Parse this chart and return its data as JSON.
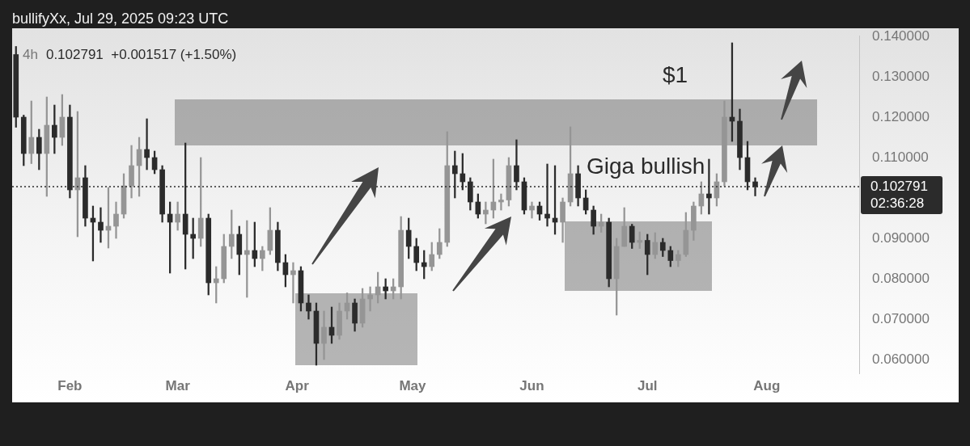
{
  "chart_data": {
    "type": "candlestick",
    "title": "4h",
    "subtitle": "0.102791  +0.001517 (+1.50%)",
    "annotations": [
      "bullifyXx, Jul 29, 2025 09:23 UTC",
      "$1",
      "Giga bullish"
    ],
    "colors": [
      "#2b2b2b",
      "#2b2b2b",
      "#959595",
      "#2b2b2b",
      "#959595",
      "#2b2b2b",
      "#959595",
      "#2b2b2b",
      "#959595",
      "#2b2b2b",
      "#2b2b2b",
      "#2b2b2b",
      "#959595",
      "#959595",
      "#959595",
      "#959595",
      "#959595",
      "#2b2b2b",
      "#2b2b2b",
      "#2b2b2b",
      "#2b2b2b",
      "#959595",
      "#2b2b2b",
      "#2b2b2b",
      "#959595",
      "#2b2b2b",
      "#959595",
      "#959595",
      "#959595",
      "#2b2b2b",
      "#959595",
      "#2b2b2b",
      "#959595",
      "#959595",
      "#2b2b2b",
      "#2b2b2b",
      "#959595",
      "#2b2b2b",
      "#2b2b2b",
      "#2b2b2b",
      "#959595",
      "#2b2b2b",
      "#959595",
      "#959595",
      "#2b2b2b",
      "#959595",
      "#959595",
      "#959595",
      "#2b2b2b",
      "#959595",
      "#959595",
      "#2b2b2b",
      "#2b2b2b",
      "#2b2b2b",
      "#959595",
      "#959595",
      "#959595",
      "#2b2b2b",
      "#2b2b2b",
      "#2b2b2b",
      "#2b2b2b",
      "#959595",
      "#959595",
      "#959595",
      "#959595",
      "#2b2b2b",
      "#2b2b2b",
      "#959595",
      "#2b2b2b",
      "#2b2b2b",
      "#2b2b2b",
      "#959595",
      "#959595",
      "#2b2b2b",
      "#2b2b2b",
      "#2b2b2b",
      "#959595",
      "#2b2b2b",
      "#959595",
      "#959595",
      "#2b2b2b",
      "#959595",
      "#2b2b2b",
      "#959595",
      "#2b2b2b",
      "#2b2b2b",
      "#959595",
      "#959595",
      "#959595",
      "#959595",
      "#2b2b2b",
      "#959595",
      "#959595",
      "#2b2b2b",
      "#2b2b2b",
      "#2b2b2b",
      "#2b2b2b"
    ],
    "x": [
      "2025-01-18",
      "2025-01-20",
      "2025-01-22",
      "2025-01-24",
      "2025-01-26",
      "2025-01-28",
      "2025-01-30",
      "2025-02-01",
      "2025-02-03",
      "2025-02-05",
      "2025-02-07",
      "2025-02-09",
      "2025-02-11",
      "2025-02-13",
      "2025-02-15",
      "2025-02-17",
      "2025-02-19",
      "2025-02-21",
      "2025-02-23",
      "2025-02-25",
      "2025-02-27",
      "2025-03-01",
      "2025-03-03",
      "2025-03-05",
      "2025-03-07",
      "2025-03-09",
      "2025-03-11",
      "2025-03-13",
      "2025-03-15",
      "2025-03-17",
      "2025-03-19",
      "2025-03-21",
      "2025-03-23",
      "2025-03-25",
      "2025-03-27",
      "2025-03-29",
      "2025-03-31",
      "2025-04-02",
      "2025-04-04",
      "2025-04-06",
      "2025-04-08",
      "2025-04-10",
      "2025-04-12",
      "2025-04-14",
      "2025-04-16",
      "2025-04-18",
      "2025-04-20",
      "2025-04-22",
      "2025-04-24",
      "2025-04-26",
      "2025-04-28",
      "2025-04-30",
      "2025-05-02",
      "2025-05-04",
      "2025-05-06",
      "2025-05-08",
      "2025-05-10",
      "2025-05-12",
      "2025-05-14",
      "2025-05-16",
      "2025-05-18",
      "2025-05-20",
      "2025-05-22",
      "2025-05-24",
      "2025-05-26",
      "2025-05-28",
      "2025-05-30",
      "2025-06-01",
      "2025-06-03",
      "2025-06-05",
      "2025-06-07",
      "2025-06-09",
      "2025-06-11",
      "2025-06-13",
      "2025-06-15",
      "2025-06-17",
      "2025-06-19",
      "2025-06-21",
      "2025-06-23",
      "2025-06-25",
      "2025-06-27",
      "2025-06-29",
      "2025-07-01",
      "2025-07-03",
      "2025-07-05",
      "2025-07-07",
      "2025-07-09",
      "2025-07-11",
      "2025-07-13",
      "2025-07-15",
      "2025-07-17",
      "2025-07-19",
      "2025-07-21",
      "2025-07-23",
      "2025-07-25",
      "2025-07-27",
      "2025-07-29"
    ],
    "ohlc": [
      [
        0.1355,
        0.1375,
        0.1175,
        0.12
      ],
      [
        0.12,
        0.1205,
        0.108,
        0.111
      ],
      [
        0.111,
        0.124,
        0.1085,
        0.115
      ],
      [
        0.115,
        0.117,
        0.107,
        0.111
      ],
      [
        0.111,
        0.125,
        0.1004,
        0.118
      ],
      [
        0.118,
        0.123,
        0.111,
        0.115
      ],
      [
        0.115,
        0.1256,
        0.113,
        0.12
      ],
      [
        0.12,
        0.123,
        0.1,
        0.102
      ],
      [
        0.102,
        0.1214,
        0.0904,
        0.105
      ],
      [
        0.105,
        0.108,
        0.093,
        0.095
      ],
      [
        0.095,
        0.098,
        0.0844,
        0.094
      ],
      [
        0.094,
        0.0976,
        0.089,
        0.092
      ],
      [
        0.092,
        0.1026,
        0.0876,
        0.093
      ],
      [
        0.093,
        0.099,
        0.09,
        0.096
      ],
      [
        0.096,
        0.106,
        0.095,
        0.103
      ],
      [
        0.103,
        0.113,
        0.1,
        0.108
      ],
      [
        0.108,
        0.115,
        0.1004,
        0.112
      ],
      [
        0.112,
        0.1196,
        0.107,
        0.11
      ],
      [
        0.11,
        0.1116,
        0.106,
        0.107
      ],
      [
        0.107,
        0.108,
        0.094,
        0.096
      ],
      [
        0.096,
        0.099,
        0.0814,
        0.094
      ],
      [
        0.094,
        0.099,
        0.092,
        0.096
      ],
      [
        0.096,
        0.1136,
        0.0824,
        0.091
      ],
      [
        0.091,
        0.095,
        0.085,
        0.09
      ],
      [
        0.09,
        0.11,
        0.088,
        0.095
      ],
      [
        0.095,
        0.096,
        0.076,
        0.079
      ],
      [
        0.079,
        0.083,
        0.074,
        0.08
      ],
      [
        0.08,
        0.091,
        0.079,
        0.088
      ],
      [
        0.088,
        0.097,
        0.085,
        0.091
      ],
      [
        0.091,
        0.093,
        0.081,
        0.086
      ],
      [
        0.086,
        0.0944,
        0.0754,
        0.087
      ],
      [
        0.087,
        0.094,
        0.083,
        0.085
      ],
      [
        0.085,
        0.088,
        0.082,
        0.087
      ],
      [
        0.087,
        0.0976,
        0.086,
        0.092
      ],
      [
        0.092,
        0.094,
        0.082,
        0.084
      ],
      [
        0.084,
        0.086,
        0.078,
        0.081
      ],
      [
        0.081,
        0.084,
        0.074,
        0.082
      ],
      [
        0.082,
        0.083,
        0.072,
        0.074
      ],
      [
        0.074,
        0.076,
        0.07,
        0.072
      ],
      [
        0.072,
        0.074,
        0.0586,
        0.064
      ],
      [
        0.064,
        0.072,
        0.06,
        0.068
      ],
      [
        0.068,
        0.073,
        0.064,
        0.066
      ],
      [
        0.066,
        0.074,
        0.065,
        0.072
      ],
      [
        0.072,
        0.0765,
        0.07,
        0.074
      ],
      [
        0.074,
        0.075,
        0.067,
        0.069
      ],
      [
        0.069,
        0.0776,
        0.068,
        0.075
      ],
      [
        0.075,
        0.078,
        0.072,
        0.076
      ],
      [
        0.076,
        0.0816,
        0.074,
        0.078
      ],
      [
        0.078,
        0.08,
        0.075,
        0.077
      ],
      [
        0.077,
        0.08,
        0.075,
        0.078
      ],
      [
        0.078,
        0.0954,
        0.075,
        0.092
      ],
      [
        0.092,
        0.095,
        0.085,
        0.088
      ],
      [
        0.088,
        0.09,
        0.082,
        0.084
      ],
      [
        0.084,
        0.087,
        0.08,
        0.083
      ],
      [
        0.083,
        0.089,
        0.082,
        0.086
      ],
      [
        0.086,
        0.0924,
        0.085,
        0.089
      ],
      [
        0.089,
        0.1164,
        0.088,
        0.108
      ],
      [
        0.108,
        0.1116,
        0.1,
        0.106
      ],
      [
        0.106,
        0.111,
        0.102,
        0.104
      ],
      [
        0.104,
        0.105,
        0.097,
        0.099
      ],
      [
        0.099,
        0.101,
        0.095,
        0.096
      ],
      [
        0.096,
        0.099,
        0.0936,
        0.097
      ],
      [
        0.097,
        0.1096,
        0.095,
        0.099
      ],
      [
        0.099,
        0.101,
        0.097,
        0.0995
      ],
      [
        0.0995,
        0.11,
        0.098,
        0.108
      ],
      [
        0.108,
        0.1144,
        0.102,
        0.104
      ],
      [
        0.104,
        0.105,
        0.096,
        0.097
      ],
      [
        0.097,
        0.099,
        0.095,
        0.098
      ],
      [
        0.098,
        0.099,
        0.0945,
        0.096
      ],
      [
        0.096,
        0.1084,
        0.093,
        0.095
      ],
      [
        0.095,
        0.108,
        0.091,
        0.094
      ],
      [
        0.094,
        0.1,
        0.089,
        0.099
      ],
      [
        0.099,
        0.1176,
        0.098,
        0.106
      ],
      [
        0.106,
        0.108,
        0.098,
        0.1
      ],
      [
        0.1,
        0.102,
        0.096,
        0.097
      ],
      [
        0.097,
        0.098,
        0.091,
        0.093
      ],
      [
        0.093,
        0.096,
        0.0915,
        0.094
      ],
      [
        0.094,
        0.095,
        0.078,
        0.08
      ],
      [
        0.08,
        0.09,
        0.071,
        0.088
      ],
      [
        0.088,
        0.0976,
        0.088,
        0.093
      ],
      [
        0.093,
        0.0935,
        0.0875,
        0.089
      ],
      [
        0.089,
        0.0916,
        0.0875,
        0.0895
      ],
      [
        0.0895,
        0.091,
        0.081,
        0.086
      ],
      [
        0.086,
        0.0914,
        0.085,
        0.089
      ],
      [
        0.089,
        0.09,
        0.0855,
        0.087
      ],
      [
        0.087,
        0.088,
        0.083,
        0.0845
      ],
      [
        0.0845,
        0.087,
        0.083,
        0.086
      ],
      [
        0.086,
        0.0964,
        0.0855,
        0.092
      ],
      [
        0.092,
        0.099,
        0.0895,
        0.098
      ],
      [
        0.098,
        0.104,
        0.096,
        0.101
      ],
      [
        0.101,
        0.1096,
        0.096,
        0.1
      ],
      [
        0.1,
        0.106,
        0.098,
        0.104
      ],
      [
        0.104,
        0.124,
        0.103,
        0.12
      ],
      [
        0.12,
        0.1384,
        0.114,
        0.119
      ],
      [
        0.119,
        0.122,
        0.107,
        0.11
      ],
      [
        0.11,
        0.114,
        0.102,
        0.104
      ],
      [
        0.104,
        0.105,
        0.1005,
        0.1028
      ]
    ],
    "xlim": [
      "2025-01-17",
      "2025-08-25"
    ],
    "xticks": [
      {
        "value": "2025-02-01",
        "label": "Feb"
      },
      {
        "value": "2025-03-01",
        "label": "Mar"
      },
      {
        "value": "2025-04-01",
        "label": "Apr"
      },
      {
        "value": "2025-05-01",
        "label": "May"
      },
      {
        "value": "2025-06-01",
        "label": "Jun"
      },
      {
        "value": "2025-07-01",
        "label": "Jul"
      },
      {
        "value": "2025-08-01",
        "label": "Aug"
      }
    ],
    "ylim": [
      0.0566,
      0.1402
    ],
    "yticks": [
      {
        "value": 0.06,
        "label": "0.060000"
      },
      {
        "value": 0.07,
        "label": "0.070000"
      },
      {
        "value": 0.08,
        "label": "0.080000"
      },
      {
        "value": 0.09,
        "label": "0.090000"
      },
      {
        "value": 0.11,
        "label": "0.110000"
      },
      {
        "value": 0.12,
        "label": "0.120000"
      },
      {
        "value": 0.13,
        "label": "0.130000"
      },
      {
        "value": 0.14,
        "label": "0.140000"
      }
    ],
    "ref_lines": [
      {
        "axis": "y",
        "value": 0.102791,
        "label": "0.102791\n02:36:28",
        "line_style": "dotted",
        "color": "#2b2b2b"
      }
    ]
  }
}
